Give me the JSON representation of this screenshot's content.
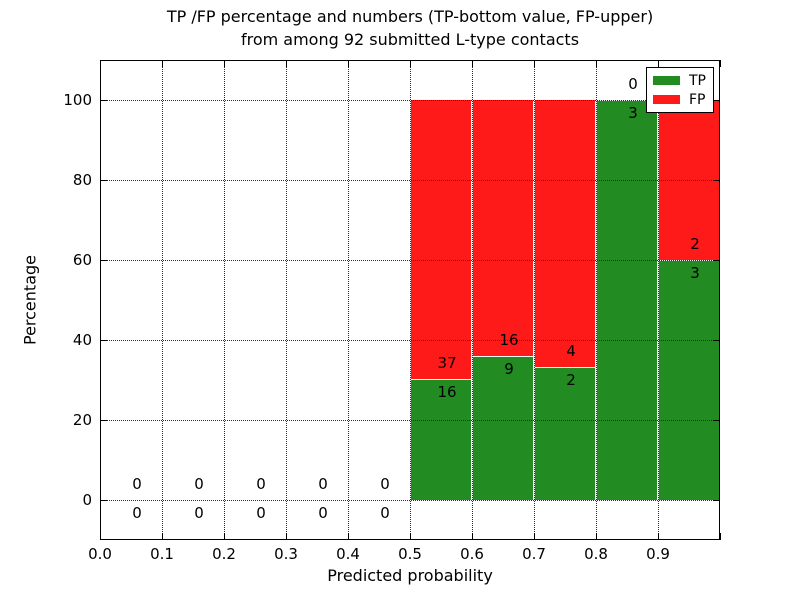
{
  "figure": {
    "title_line1": "TP /FP percentage and numbers (TP-bottom value, FP-upper)",
    "title_line2": "from among 92 submitted L-type contacts",
    "xlabel": "Predicted probability",
    "ylabel": "Percentage"
  },
  "legend": {
    "position": "upper right",
    "items": [
      {
        "name": "TP",
        "label": "TP",
        "color": "#228b22"
      },
      {
        "name": "FP",
        "label": "FP",
        "color": "#ff1a1a"
      }
    ]
  },
  "colors": {
    "tp": "#228b22",
    "fp": "#ff1a1a",
    "grid": "#2a2a2a",
    "background": "#ffffff"
  },
  "chart_data": {
    "type": "bar",
    "stacked": true,
    "normalized": "percent of bin total",
    "title": "TP /FP percentage and numbers (TP-bottom value, FP-upper) from among 92 submitted L-type contacts",
    "xlabel": "Predicted probability",
    "ylabel": "Percentage",
    "xlim": [
      0.0,
      1.0
    ],
    "ylim": [
      -10,
      110
    ],
    "grid": "dotted",
    "legend_position": "upper right",
    "x_tick_labels": [
      "0.0",
      "0.1",
      "0.2",
      "0.3",
      "0.4",
      "0.5",
      "0.6",
      "0.7",
      "0.8",
      "0.9"
    ],
    "x_tick_values": [
      0.0,
      0.1,
      0.2,
      0.3,
      0.4,
      0.5,
      0.6,
      0.7,
      0.8,
      0.9
    ],
    "y_tick_labels": [
      "0",
      "20",
      "40",
      "60",
      "80",
      "100"
    ],
    "y_tick_values": [
      0,
      20,
      40,
      60,
      80,
      100
    ],
    "bin_edges": [
      0.0,
      0.1,
      0.2,
      0.3,
      0.4,
      0.5,
      0.6,
      0.7,
      0.8,
      0.9,
      1.0
    ],
    "series": [
      {
        "name": "TP",
        "color": "#228b22",
        "counts": [
          0,
          0,
          0,
          0,
          0,
          16,
          9,
          2,
          3,
          3
        ],
        "percent": [
          0,
          0,
          0,
          0,
          0,
          30.19,
          36.0,
          33.33,
          100.0,
          60.0
        ]
      },
      {
        "name": "FP",
        "color": "#ff1a1a",
        "counts": [
          0,
          0,
          0,
          0,
          0,
          37,
          16,
          4,
          0,
          2
        ],
        "percent": [
          0,
          0,
          0,
          0,
          0,
          69.81,
          64.0,
          66.67,
          0.0,
          40.0
        ]
      }
    ],
    "total_contacts": 92
  }
}
